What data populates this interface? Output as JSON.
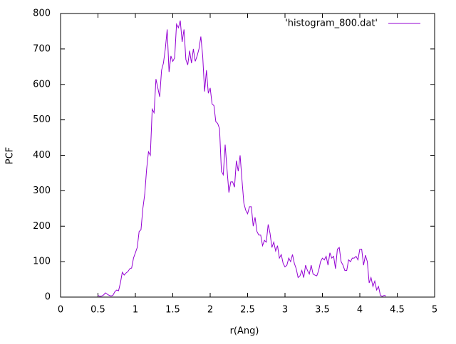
{
  "chart_data": {
    "type": "line",
    "xlabel": "r(Ang)",
    "ylabel": "PCF",
    "x": [
      0.5,
      0.525,
      0.55,
      0.575,
      0.6,
      0.625,
      0.65,
      0.675,
      0.7,
      0.725,
      0.75,
      0.775,
      0.8,
      0.825,
      0.85,
      0.875,
      0.9,
      0.925,
      0.95,
      0.975,
      1.0,
      1.025,
      1.05,
      1.075,
      1.1,
      1.125,
      1.15,
      1.175,
      1.2,
      1.225,
      1.25,
      1.275,
      1.3,
      1.325,
      1.35,
      1.375,
      1.4,
      1.425,
      1.45,
      1.475,
      1.5,
      1.525,
      1.55,
      1.575,
      1.6,
      1.625,
      1.65,
      1.675,
      1.7,
      1.725,
      1.75,
      1.775,
      1.8,
      1.825,
      1.85,
      1.875,
      1.9,
      1.925,
      1.95,
      1.975,
      2.0,
      2.025,
      2.05,
      2.075,
      2.1,
      2.125,
      2.15,
      2.175,
      2.2,
      2.225,
      2.25,
      2.275,
      2.3,
      2.325,
      2.35,
      2.375,
      2.4,
      2.425,
      2.45,
      2.475,
      2.5,
      2.525,
      2.55,
      2.575,
      2.6,
      2.625,
      2.65,
      2.675,
      2.7,
      2.725,
      2.75,
      2.775,
      2.8,
      2.825,
      2.85,
      2.875,
      2.9,
      2.925,
      2.95,
      2.975,
      3.0,
      3.025,
      3.05,
      3.075,
      3.1,
      3.125,
      3.15,
      3.175,
      3.2,
      3.225,
      3.25,
      3.275,
      3.3,
      3.325,
      3.35,
      3.375,
      3.4,
      3.425,
      3.45,
      3.475,
      3.5,
      3.525,
      3.55,
      3.575,
      3.6,
      3.625,
      3.65,
      3.675,
      3.7,
      3.725,
      3.75,
      3.775,
      3.8,
      3.825,
      3.85,
      3.875,
      3.9,
      3.925,
      3.95,
      3.975,
      4.0,
      4.025,
      4.05,
      4.075,
      4.1,
      4.125,
      4.15,
      4.175,
      4.2,
      4.225,
      4.25,
      4.275,
      4.3,
      4.325,
      4.35
    ],
    "series": [
      {
        "name": "'histogram_800.dat'",
        "color": "#9400d3",
        "values": [
          5,
          2,
          3,
          6,
          12,
          8,
          5,
          3,
          5,
          15,
          20,
          18,
          40,
          70,
          62,
          68,
          72,
          80,
          82,
          110,
          125,
          140,
          185,
          190,
          250,
          290,
          360,
          410,
          400,
          530,
          520,
          615,
          590,
          565,
          640,
          660,
          700,
          755,
          635,
          680,
          665,
          675,
          770,
          760,
          780,
          720,
          755,
          670,
          655,
          695,
          660,
          700,
          665,
          680,
          700,
          735,
          680,
          580,
          640,
          575,
          590,
          545,
          540,
          495,
          490,
          475,
          355,
          345,
          430,
          360,
          295,
          325,
          325,
          310,
          385,
          355,
          400,
          330,
          265,
          245,
          235,
          255,
          255,
          200,
          225,
          185,
          175,
          175,
          145,
          160,
          155,
          205,
          180,
          140,
          155,
          130,
          145,
          110,
          120,
          95,
          85,
          90,
          110,
          100,
          120,
          95,
          80,
          55,
          60,
          75,
          55,
          90,
          75,
          65,
          90,
          65,
          62,
          60,
          75,
          100,
          110,
          105,
          115,
          90,
          125,
          110,
          115,
          80,
          135,
          140,
          100,
          90,
          75,
          75,
          105,
          100,
          110,
          110,
          115,
          105,
          135,
          135,
          90,
          118,
          100,
          40,
          55,
          30,
          45,
          20,
          30,
          5,
          2,
          5,
          3
        ]
      }
    ],
    "xlim": [
      0,
      5
    ],
    "xticks": [
      0,
      0.5,
      1,
      1.5,
      2,
      2.5,
      3,
      3.5,
      4,
      4.5,
      5
    ],
    "ylim": [
      0,
      800
    ],
    "yticks": [
      0,
      100,
      200,
      300,
      400,
      500,
      600,
      700,
      800
    ],
    "legend": "top-right"
  }
}
